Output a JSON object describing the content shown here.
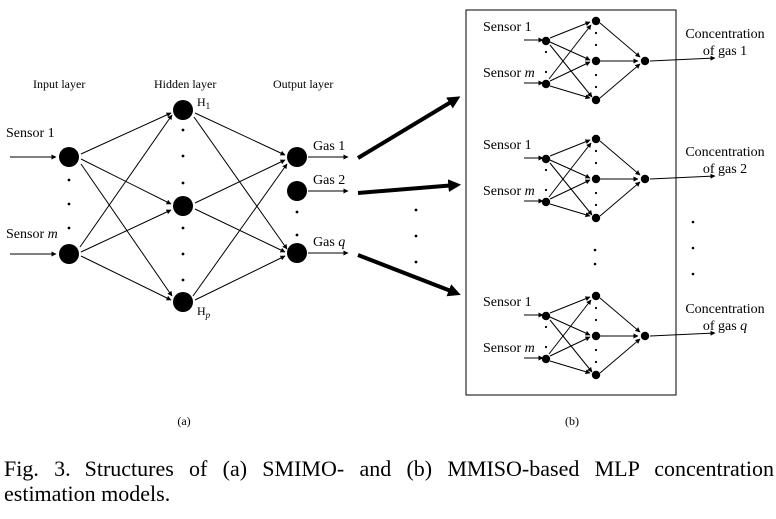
{
  "figure": {
    "panel_a": {
      "input_layer_label": "Input layer",
      "hidden_layer_label": "Hidden layer",
      "output_layer_label": "Output layer",
      "sensor_1": "Sensor 1",
      "sensor_m_prefix": "Sensor ",
      "sensor_m_var": "m",
      "hidden_1_base": "H",
      "hidden_1_sub": "1",
      "hidden_p_base": "H",
      "hidden_p_sub": "p",
      "gas_1": "Gas 1",
      "gas_2": "Gas 2",
      "gas_q_prefix": "Gas ",
      "gas_q_var": "q",
      "panel_label": "(a)"
    },
    "panel_b": {
      "blocks": [
        {
          "sensor_1": "Sensor 1",
          "sensor_m_prefix": "Sensor ",
          "sensor_m_var": "m",
          "conc_line1": "Concentration",
          "conc_line2_prefix": "of gas ",
          "conc_line2_var": "1"
        },
        {
          "sensor_1": "Sensor 1",
          "sensor_m_prefix": "Sensor ",
          "sensor_m_var": "m",
          "conc_line1": "Concentration",
          "conc_line2_prefix": "of gas ",
          "conc_line2_var": "2"
        },
        {
          "sensor_1": "Sensor 1",
          "sensor_m_prefix": "Sensor ",
          "sensor_m_var": "m",
          "conc_line1": "Concentration",
          "conc_line2_prefix": "of gas ",
          "conc_line2_var": "q"
        }
      ],
      "panel_label": "(b)"
    }
  },
  "caption": {
    "number": "Fig. 3.",
    "text": "Structures of (a) SMIMO- and (b) MMISO-based MLP concentration estimation models."
  }
}
